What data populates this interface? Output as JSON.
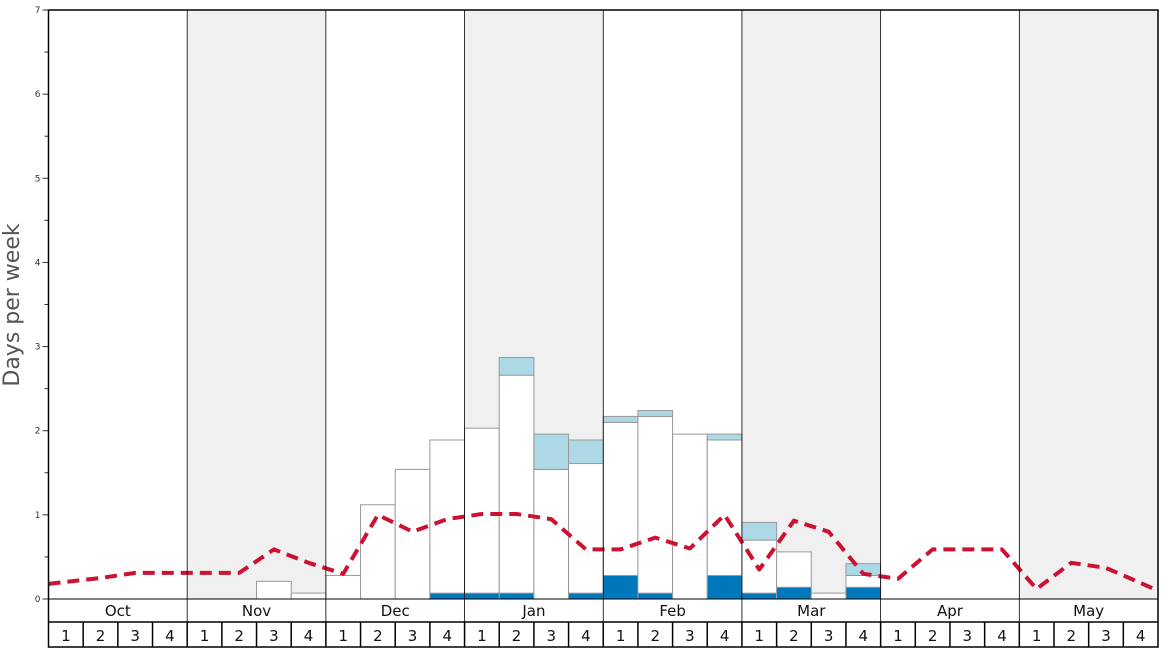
{
  "chart_data": {
    "type": "bar",
    "title": "",
    "ylabel": "Days per week",
    "xlabel": "",
    "ylim": [
      0,
      7
    ],
    "yticks": [
      0,
      1,
      2,
      3,
      4,
      5,
      6,
      7
    ],
    "months": [
      "Oct",
      "Nov",
      "Dec",
      "Jan",
      "Feb",
      "Mar",
      "Apr",
      "May"
    ],
    "week_labels": [
      "1",
      "2",
      "3",
      "4"
    ],
    "stack_order": [
      "dark",
      "white",
      "light"
    ],
    "colors": {
      "dark": "#0077bb",
      "white": "#ffffff",
      "light": "#add8e6",
      "average_line": "#cc1133",
      "shade": "#f0f0f0",
      "bar_edge": "#999999"
    },
    "series": [
      {
        "key": "dark",
        "values": [
          0,
          0,
          0,
          0,
          0,
          0,
          0,
          0,
          0,
          0,
          0,
          0.07,
          0.07,
          0.07,
          0,
          0.07,
          0.28,
          0.07,
          0,
          0.28,
          0.07,
          0.14,
          0,
          0.14,
          0,
          0,
          0,
          0,
          0,
          0,
          0,
          0
        ]
      },
      {
        "key": "white",
        "values": [
          0,
          0,
          0,
          0,
          0,
          0,
          0.21,
          0.07,
          0.28,
          1.12,
          1.54,
          1.82,
          1.96,
          2.59,
          1.54,
          1.54,
          1.82,
          2.1,
          1.96,
          1.61,
          0.63,
          0.42,
          0.07,
          0.14,
          0,
          0,
          0,
          0,
          0,
          0,
          0,
          0
        ]
      },
      {
        "key": "light",
        "values": [
          0,
          0,
          0,
          0,
          0,
          0,
          0,
          0,
          0,
          0,
          0,
          0,
          0,
          0.21,
          0.42,
          0.28,
          0.07,
          0.07,
          0,
          0.07,
          0.21,
          0,
          0,
          0.14,
          0,
          0,
          0,
          0,
          0,
          0,
          0,
          0
        ]
      }
    ],
    "average": [
      0.18,
      0.25,
      0.31,
      0.31,
      0.31,
      0.31,
      0.59,
      0.43,
      0.3,
      1.0,
      0.8,
      0.95,
      1.01,
      1.01,
      0.95,
      0.59,
      0.59,
      0.73,
      0.6,
      1.0,
      0.35,
      0.93,
      0.8,
      0.3,
      0.24,
      0.59,
      0.59,
      0.59,
      0.12,
      0.43,
      0.37,
      0.1
    ]
  }
}
